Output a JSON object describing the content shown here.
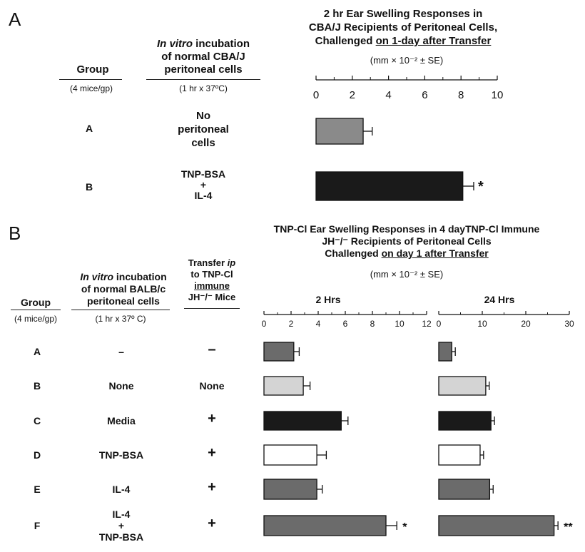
{
  "panelA": {
    "letter": "A",
    "title_l1": "2 hr Ear Swelling Responses in",
    "title_l2": "CBA/J Recipients of Peritoneal Cells,",
    "title_l3a": "Challenged ",
    "title_l3b": "on 1-day after Transfer",
    "units": "(mm × 10⁻² ± SE)",
    "col_group": "Group",
    "col_group_sub": "(4 mice/gp)",
    "col_incub_l1": "In vitro",
    "col_incub_l1b": " incubation",
    "col_incub_l2": "of normal CBA/J",
    "col_incub_l3": "peritoneal cells",
    "col_incub_sub": "(1 hr x 37ºC)",
    "rows": [
      {
        "group": "A",
        "incub": [
          "No",
          "peritoneal",
          "cells"
        ]
      },
      {
        "group": "B",
        "incub": [
          "TNP-BSA",
          "+",
          "IL-4"
        ]
      }
    ]
  },
  "panelB": {
    "letter": "B",
    "title_l1": "TNP-Cl Ear Swelling Responses in 4 dayTNP-Cl Immune",
    "title_l2": "JH⁻/⁻ Recipients of Peritoneal Cells",
    "title_l3a": "Challenged ",
    "title_l3b": "on day 1 after Transfer",
    "units": "(mm × 10⁻² ± SE)",
    "col_group": "Group",
    "col_group_sub": "(4 mice/gp)",
    "col_incub_l1": "In vitro",
    "col_incub_l1b": " incubation",
    "col_incub_l2": "of normal BALB/c",
    "col_incub_l3": "peritoneal cells",
    "col_incub_sub": "(1 hr x 37º C)",
    "col_transfer_l1": "Transfer ",
    "col_transfer_l1b": "ip",
    "col_transfer_l2": "to TNP-Cl",
    "col_transfer_l3": "immune",
    "col_transfer_l4": "JH⁻/⁻ Mice",
    "sub_2h": "2 Hrs",
    "sub_24h": "24 Hrs",
    "rows": [
      {
        "group": "A",
        "incub": [
          "–"
        ],
        "transfer": "–"
      },
      {
        "group": "B",
        "incub": [
          "None"
        ],
        "transfer": "None"
      },
      {
        "group": "C",
        "incub": [
          "Media"
        ],
        "transfer": "+"
      },
      {
        "group": "D",
        "incub": [
          "TNP-BSA"
        ],
        "transfer": "+"
      },
      {
        "group": "E",
        "incub": [
          "IL-4"
        ],
        "transfer": "+"
      },
      {
        "group": "F",
        "incub": [
          "IL-4",
          "+",
          "TNP-BSA"
        ],
        "transfer": "+"
      }
    ]
  },
  "colors": {
    "dark_gray": "#6b6b6b",
    "mid_gray": "#8a8a8a",
    "light_gray": "#d4d4d4",
    "black": "#1a1a1a",
    "white": "#ffffff"
  },
  "chart_data": [
    {
      "type": "bar",
      "orientation": "horizontal",
      "title": "2 hr Ear Swelling Responses in CBA/J Recipients of Peritoneal Cells, Challenged on 1-day after Transfer",
      "xlabel": "(mm × 10⁻² ± SE)",
      "xlim": [
        0,
        10
      ],
      "xticks": [
        0,
        2,
        4,
        6,
        8,
        10
      ],
      "categories": [
        "A",
        "B"
      ],
      "values": [
        2.6,
        8.1
      ],
      "errors": [
        0.5,
        0.6
      ],
      "colors": [
        "#8a8a8a",
        "#1a1a1a"
      ],
      "annotations": [
        "",
        "*"
      ]
    },
    {
      "type": "bar",
      "orientation": "horizontal",
      "title": "2 Hrs",
      "xlabel": "(mm × 10⁻² ± SE)",
      "xlim": [
        0,
        12
      ],
      "xticks": [
        0,
        2,
        4,
        6,
        8,
        10,
        12
      ],
      "categories": [
        "A",
        "B",
        "C",
        "D",
        "E",
        "F"
      ],
      "values": [
        2.2,
        2.9,
        5.7,
        3.9,
        3.9,
        9.0
      ],
      "errors": [
        0.4,
        0.5,
        0.5,
        0.7,
        0.4,
        0.8
      ],
      "colors": [
        "#6b6b6b",
        "#d4d4d4",
        "#1a1a1a",
        "#ffffff",
        "#6b6b6b",
        "#6b6b6b"
      ],
      "annotations": [
        "",
        "",
        "",
        "",
        "",
        "*"
      ]
    },
    {
      "type": "bar",
      "orientation": "horizontal",
      "title": "24 Hrs",
      "xlabel": "(mm × 10⁻² ± SE)",
      "xlim": [
        0,
        30
      ],
      "xticks": [
        0,
        10,
        20,
        30
      ],
      "categories": [
        "A",
        "B",
        "C",
        "D",
        "E",
        "F"
      ],
      "values": [
        3.0,
        10.8,
        12.0,
        9.5,
        11.7,
        26.5
      ],
      "errors": [
        0.8,
        0.8,
        0.8,
        0.8,
        0.8,
        0.9
      ],
      "colors": [
        "#6b6b6b",
        "#d4d4d4",
        "#1a1a1a",
        "#ffffff",
        "#6b6b6b",
        "#6b6b6b"
      ],
      "annotations": [
        "",
        "",
        "",
        "",
        "",
        "**"
      ]
    }
  ]
}
